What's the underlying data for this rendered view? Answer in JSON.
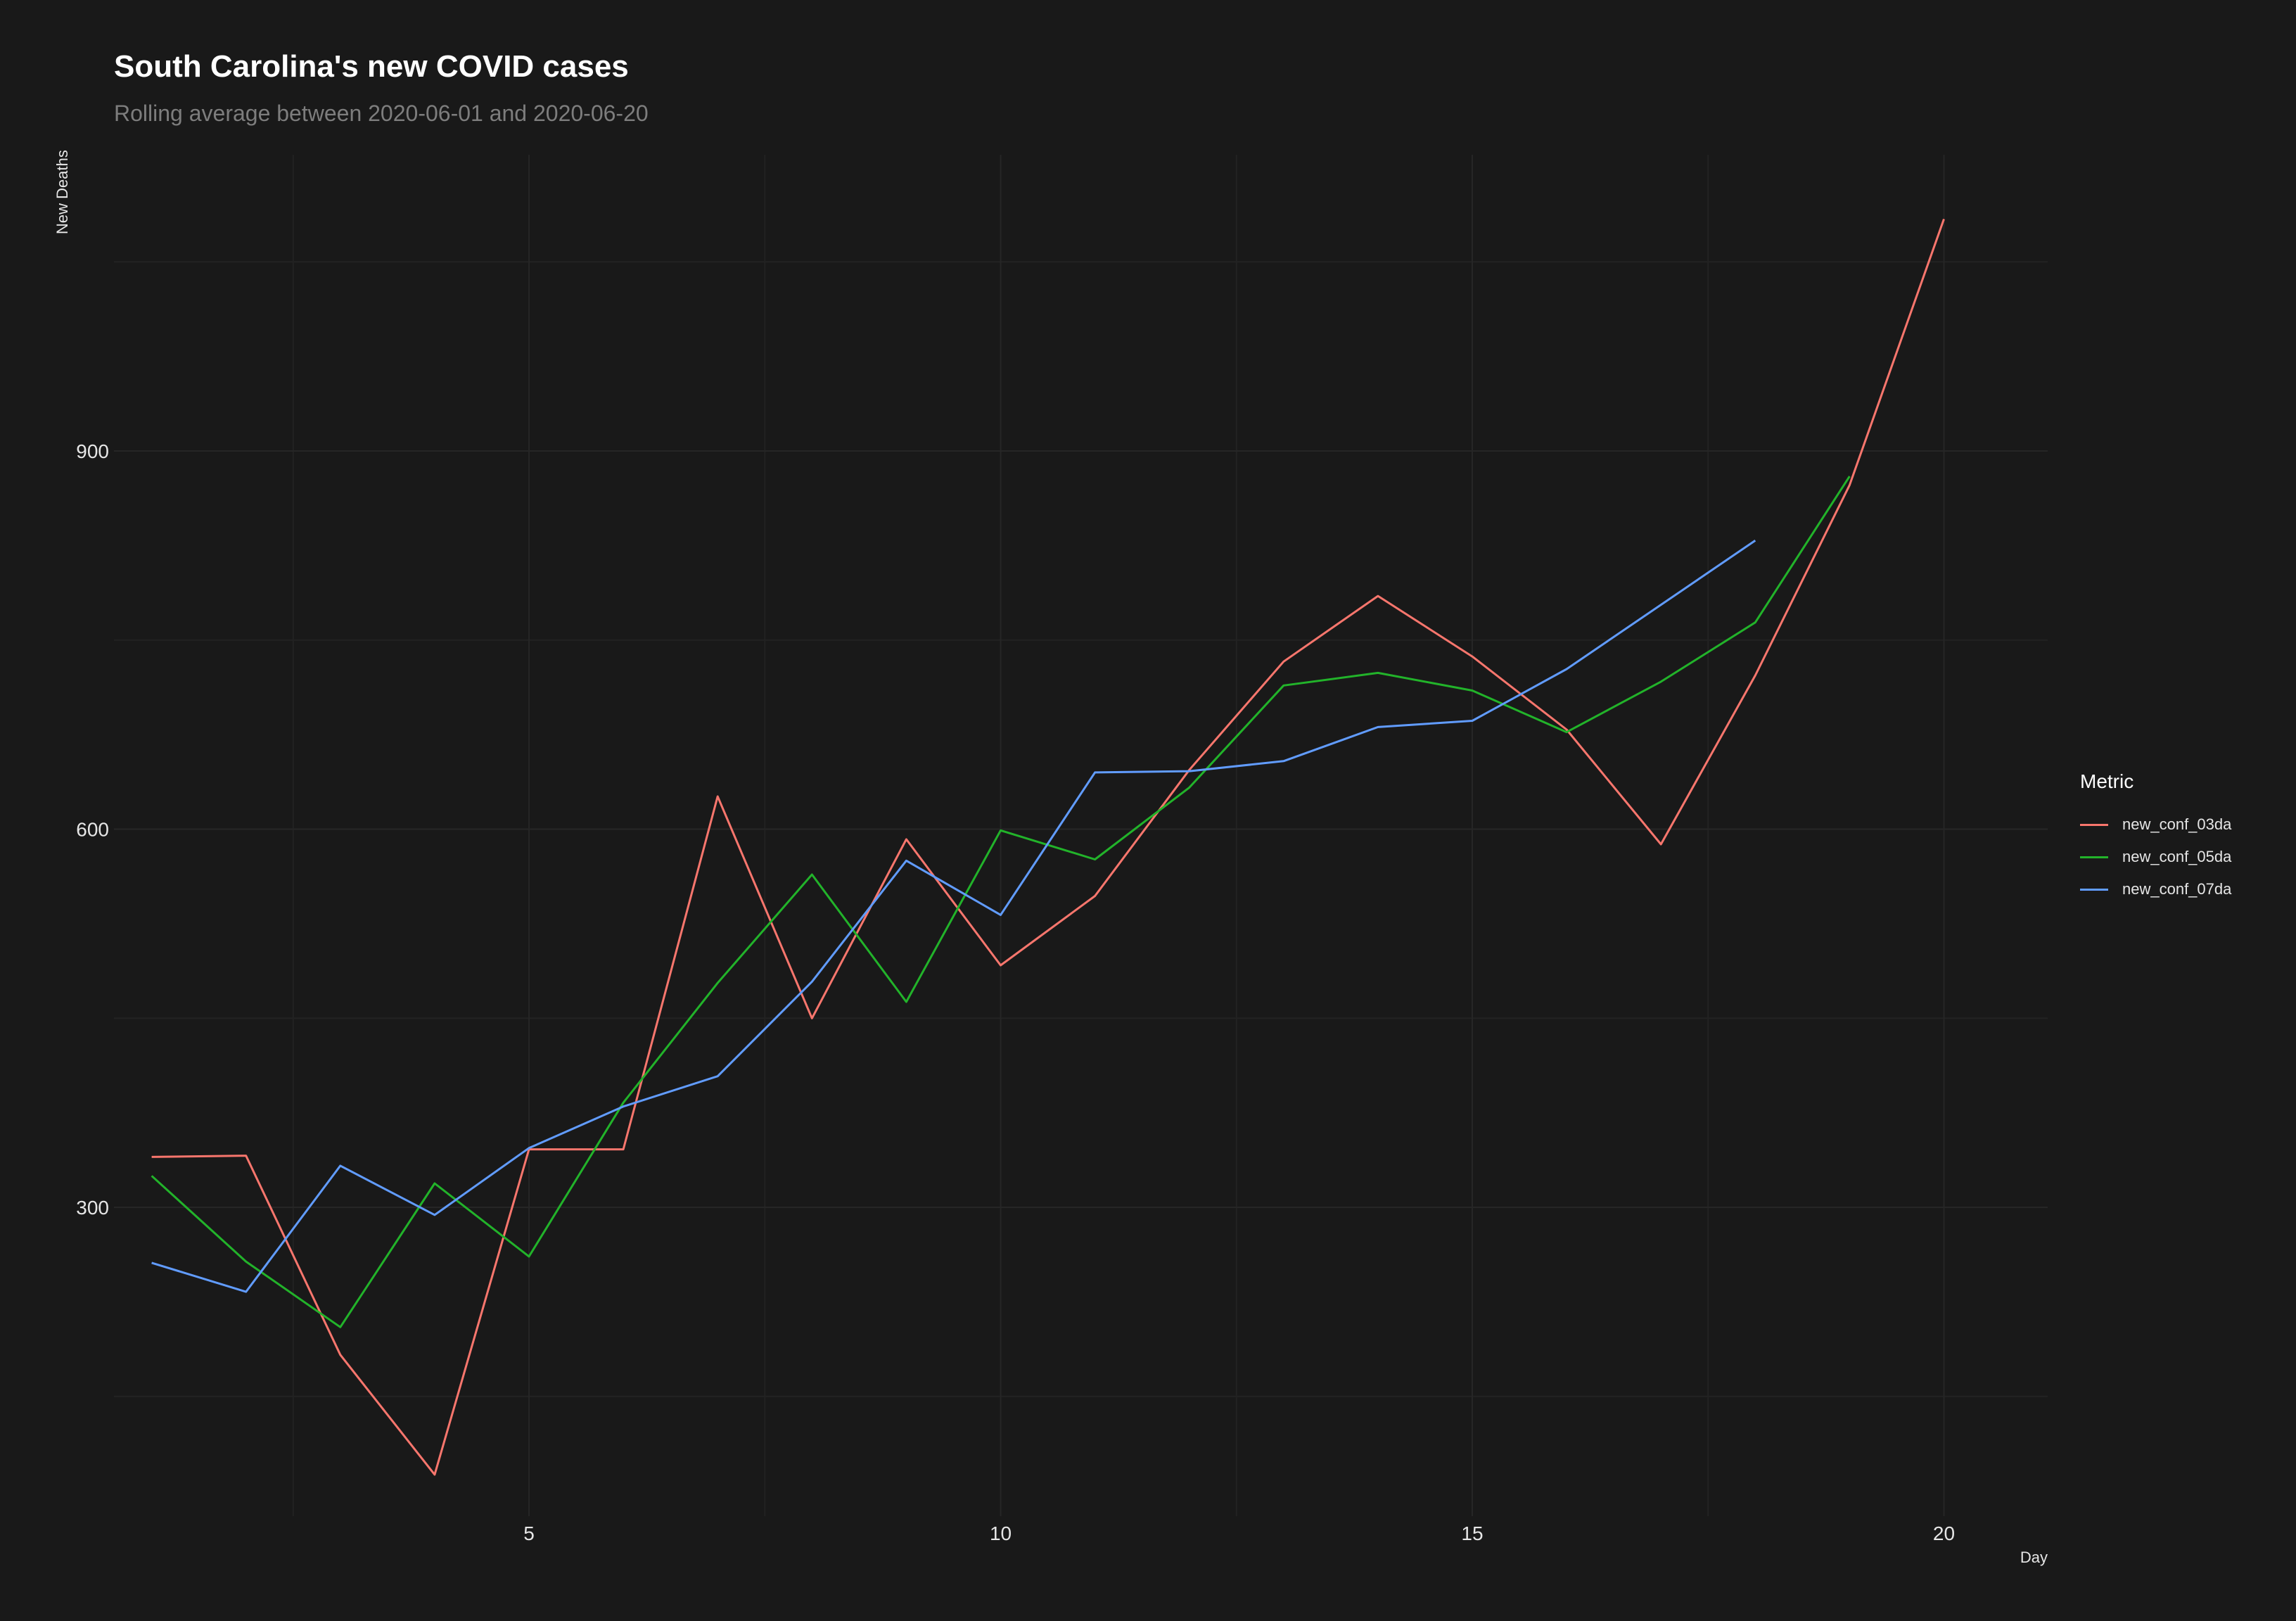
{
  "header": {
    "title": "South Carolina's new COVID cases",
    "subtitle": "Rolling average between 2020-06-01 and 2020-06-20"
  },
  "legend": {
    "title": "Metric",
    "placement": "right"
  },
  "colors": {
    "background": "#191919",
    "grid": "#262626",
    "new_conf_03da": "#f8766d",
    "new_conf_05da": "#22b32a",
    "new_conf_07da": "#619cff"
  },
  "chart_data": {
    "type": "line",
    "title": "South Carolina's new COVID cases",
    "subtitle": "Rolling average between 2020-06-01 and 2020-06-20",
    "xlabel": "Day",
    "ylabel": "New Deaths",
    "xlim": [
      0.6,
      21.1
    ],
    "ylim": [
      55,
      1135
    ],
    "x_ticks": [
      5,
      10,
      15,
      20
    ],
    "x_minor_ticks": [
      2.5,
      7.5,
      12.5,
      17.5
    ],
    "y_ticks": [
      300,
      600,
      900
    ],
    "y_minor_ticks": [
      150,
      450,
      750,
      1050
    ],
    "grid": true,
    "legend_position": "right",
    "series": [
      {
        "name": "new_conf_03da",
        "color": "#f8766d",
        "x": [
          1,
          2,
          3,
          4,
          5,
          6,
          7,
          8,
          9,
          10,
          11,
          12,
          13,
          14,
          15,
          16,
          17,
          18,
          19,
          20
        ],
        "y": [
          340,
          341,
          183,
          88,
          346,
          346,
          626,
          450,
          592,
          492,
          547,
          647,
          733,
          785,
          737,
          679,
          588,
          722,
          873,
          1084
        ]
      },
      {
        "name": "new_conf_05da",
        "color": "#22b32a",
        "x": [
          1,
          2,
          3,
          4,
          5,
          6,
          7,
          8,
          9,
          10,
          11,
          12,
          13,
          14,
          15,
          16,
          17,
          18,
          19
        ],
        "y": [
          325,
          257,
          205,
          319,
          261,
          383,
          478,
          564,
          463,
          599,
          576,
          633,
          714,
          724,
          710,
          677,
          717,
          764,
          880
        ]
      },
      {
        "name": "new_conf_07da",
        "color": "#619cff",
        "x": [
          1,
          2,
          3,
          4,
          5,
          6,
          7,
          8,
          9,
          10,
          11,
          12,
          13,
          14,
          15,
          16,
          17,
          18
        ],
        "y": [
          256,
          233,
          333,
          294,
          347,
          380,
          404,
          479,
          575,
          532,
          645,
          646,
          654,
          681,
          686,
          727,
          778,
          829
        ]
      }
    ]
  }
}
